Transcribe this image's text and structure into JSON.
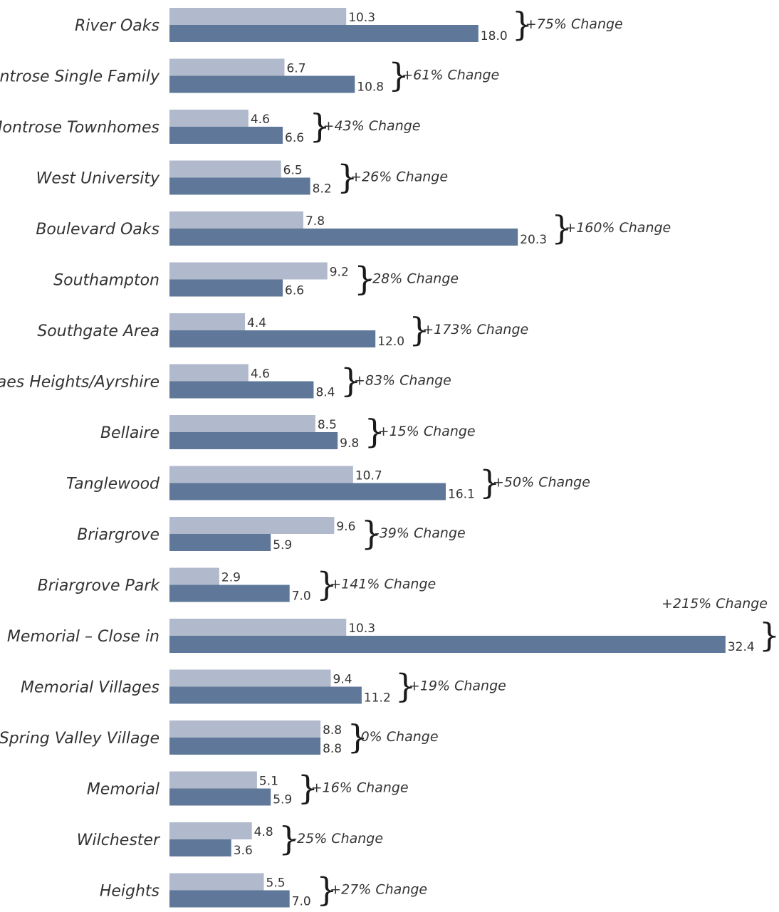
{
  "chart_data": {
    "type": "bar",
    "orientation": "horizontal",
    "categories": [
      "River Oaks",
      "Montrose Single Family",
      "Montrose Townhomes",
      "West University",
      "Boulevard Oaks",
      "Southampton",
      "Southgate Area",
      "Braes Heights/Ayrshire",
      "Bellaire",
      "Tanglewood",
      "Briargrove",
      "Briargrove Park",
      "Memorial – Close in",
      "Memorial Villages",
      "Spring Valley Village",
      "Memorial",
      "Wilchester",
      "Heights"
    ],
    "series": [
      {
        "color": "#b0bacc",
        "values": [
          10.3,
          6.7,
          4.6,
          6.5,
          7.8,
          9.2,
          4.4,
          4.6,
          8.5,
          10.7,
          9.6,
          2.9,
          10.3,
          9.4,
          8.8,
          5.1,
          4.8,
          5.5
        ],
        "labels": [
          "10.3",
          "6.7",
          "4.6",
          "6.5",
          "7.8",
          "9.2",
          "4.4",
          "4.6",
          "8.5",
          "10.7",
          "9.6",
          "2.9",
          "10.3",
          "9.4",
          "8.8",
          "5.1",
          "4.8",
          "5.5"
        ]
      },
      {
        "color": "#5f7899",
        "values": [
          18.0,
          10.8,
          6.6,
          8.2,
          20.3,
          6.6,
          12.0,
          8.4,
          9.8,
          16.1,
          5.9,
          7.0,
          32.4,
          11.2,
          8.8,
          5.9,
          3.6,
          7.0
        ],
        "labels": [
          "18.0",
          "10.8",
          "6.6",
          "8.2",
          "20.3",
          "6.6",
          "12.0",
          "8.4",
          "9.8",
          "16.1",
          "5.9",
          "7.0",
          "32.4",
          "11.2",
          "8.8",
          "5.9",
          "3.6",
          "7.0"
        ]
      }
    ],
    "annotations": [
      "+75% Change",
      "+61% Change",
      "+43% Change",
      "+26% Change",
      "+160% Change",
      "-28% Change",
      "+173% Change",
      "+83% Change",
      "+15% Change",
      "+50% Change",
      "-39% Change",
      "+141% Change",
      "+215% Change",
      "+19% Change",
      "0% Change",
      "+16% Change",
      "-25% Change",
      "+27% Change"
    ],
    "title": "",
    "xlabel": "",
    "ylabel": "",
    "xlim": [
      0,
      32.4
    ],
    "grid": false,
    "legend": "none"
  }
}
